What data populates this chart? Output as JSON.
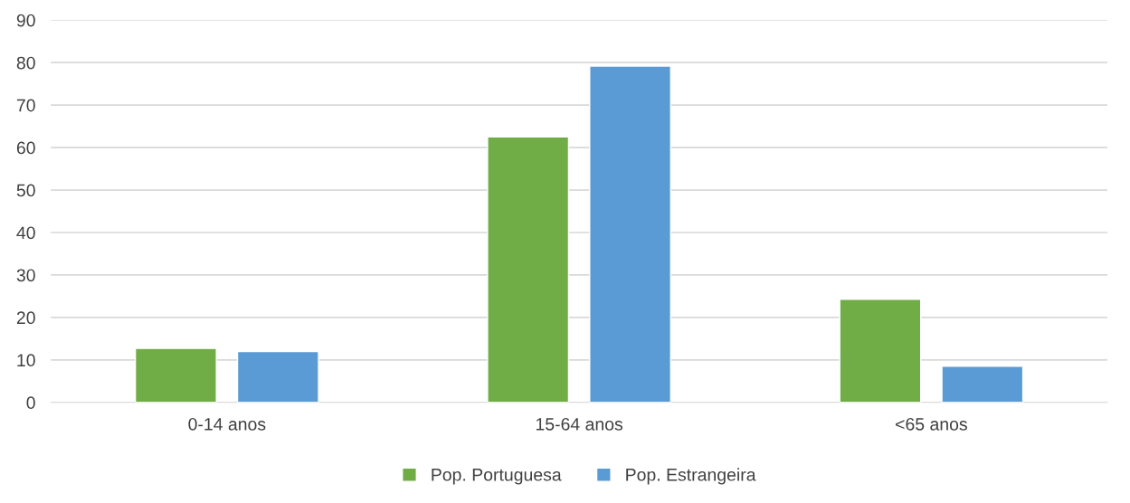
{
  "chart_data": {
    "type": "bar",
    "categories": [
      "0-14 anos",
      "15-64 anos",
      "<65 anos"
    ],
    "series": [
      {
        "name": "Pop. Portuguesa",
        "color": "#70ad47",
        "values": [
          12.7,
          62.5,
          24.3
        ]
      },
      {
        "name": "Pop. Estrangeira",
        "color": "#5b9bd5",
        "values": [
          12.0,
          79.2,
          8.5
        ]
      }
    ],
    "ylim": [
      0,
      90
    ],
    "yticks": [
      0,
      10,
      20,
      30,
      40,
      50,
      60,
      70,
      80,
      90
    ],
    "grid": "y",
    "legend": "bottom"
  }
}
